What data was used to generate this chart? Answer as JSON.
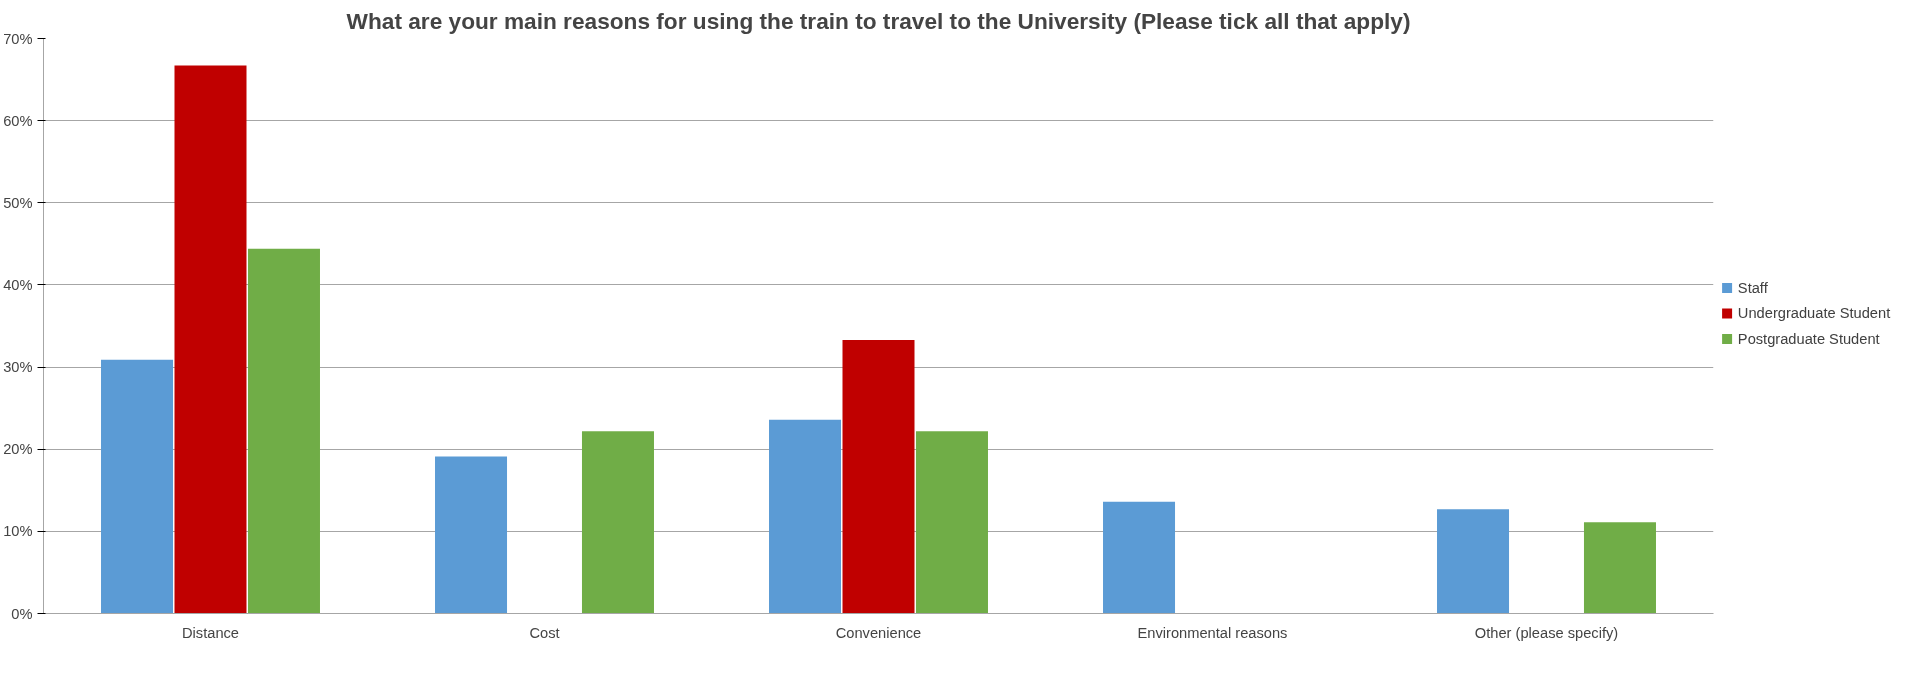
{
  "chart_data": {
    "type": "bar",
    "title": "What are your main reasons for using the train to travel to the University (Please tick all that apply)",
    "categories": [
      "Distance",
      "Cost",
      "Convenience",
      "Environmental reasons",
      "Other (please specify)"
    ],
    "series": [
      {
        "name": "Staff",
        "color": "#5b9bd5",
        "values": [
          30.9,
          19.1,
          23.6,
          13.6,
          12.7
        ]
      },
      {
        "name": "Undergraduate Student",
        "color": "#c00000",
        "values": [
          66.7,
          0,
          33.3,
          0,
          0
        ]
      },
      {
        "name": "Postgraduate Student",
        "color": "#70ad47",
        "values": [
          44.4,
          22.2,
          22.2,
          0,
          11.1
        ]
      }
    ],
    "ylim": [
      0,
      70
    ],
    "yticks": [
      {
        "value": 0,
        "label": "0%"
      },
      {
        "value": 10,
        "label": "10%"
      },
      {
        "value": 20,
        "label": "20%"
      },
      {
        "value": 30,
        "label": "30%"
      },
      {
        "value": 40,
        "label": "40%"
      },
      {
        "value": 50,
        "label": "50%"
      },
      {
        "value": 60,
        "label": "60%"
      },
      {
        "value": 70,
        "label": "70%"
      }
    ],
    "grid": "y",
    "legend": "right"
  }
}
